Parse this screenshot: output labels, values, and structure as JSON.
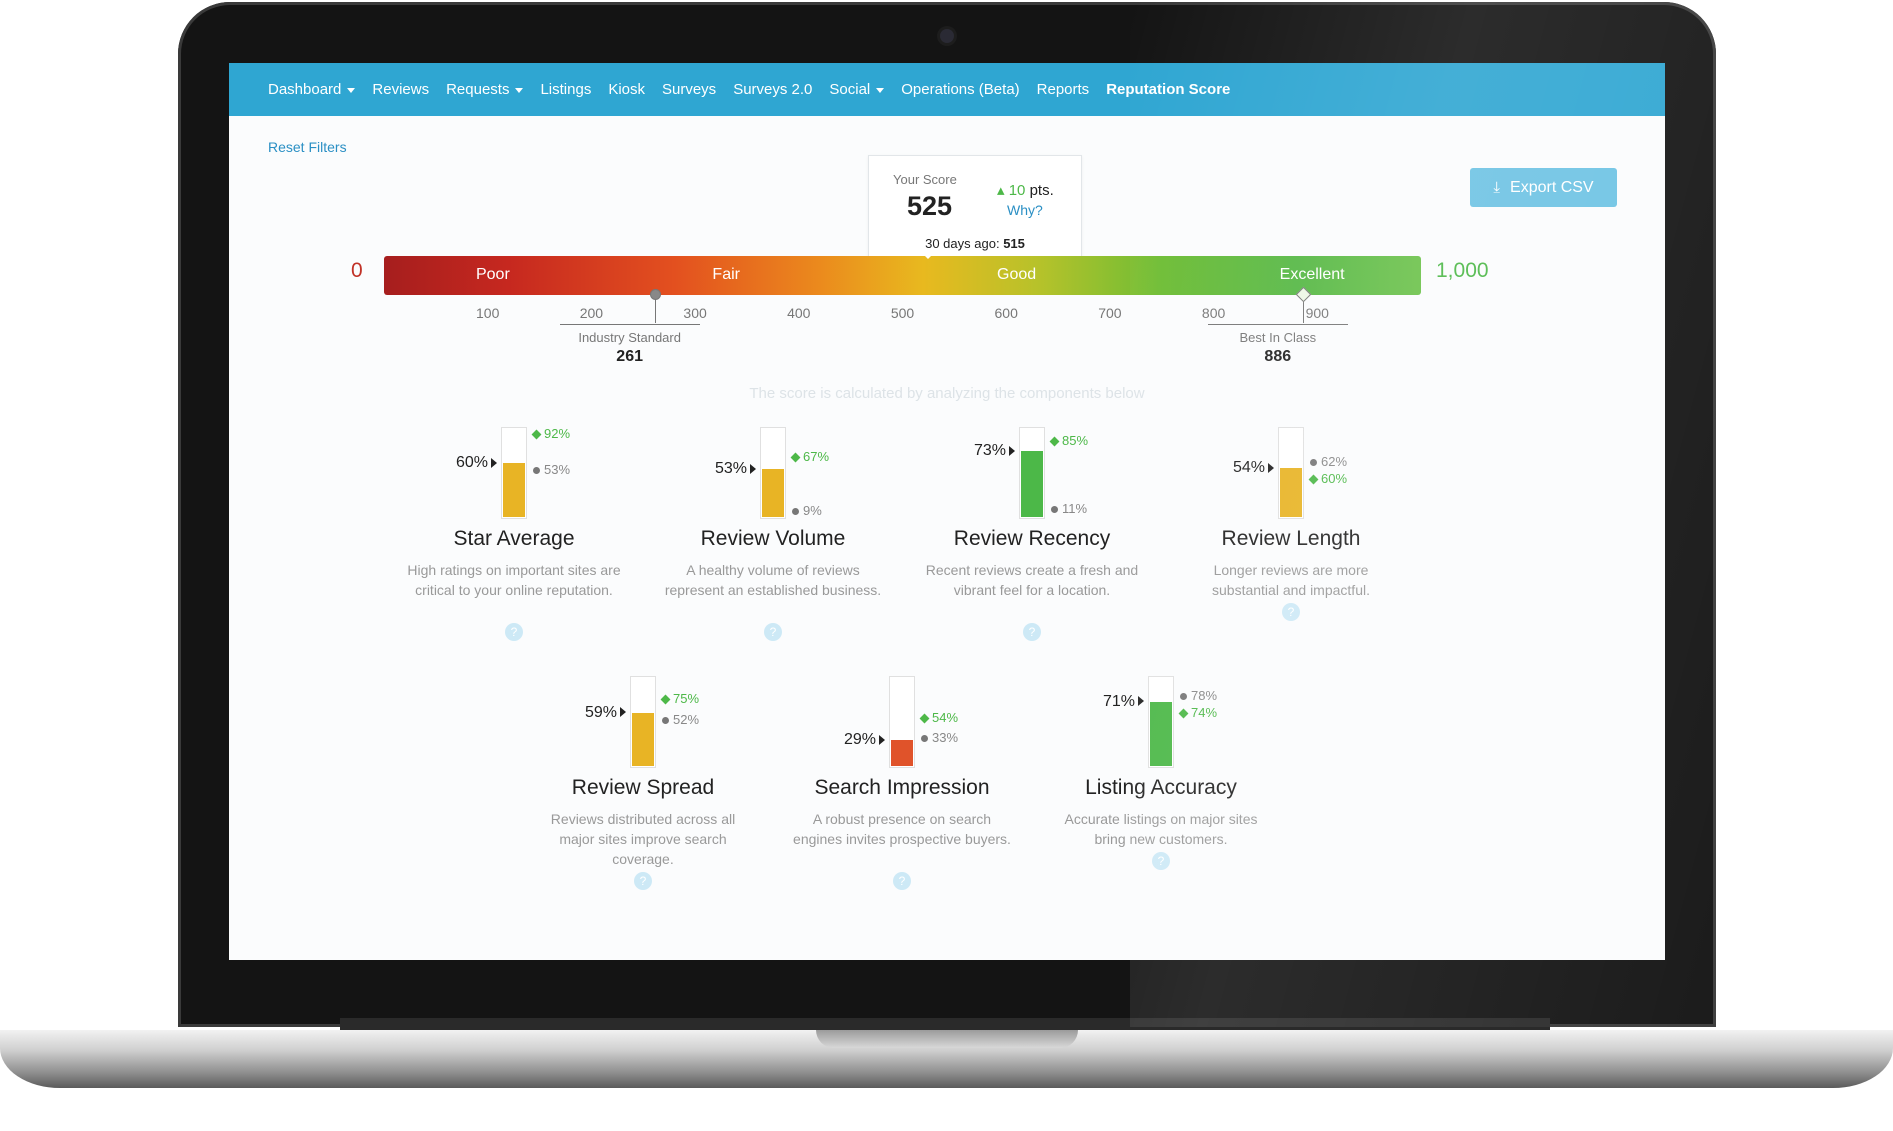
{
  "nav": {
    "items": [
      {
        "label": "Dashboard",
        "dropdown": true
      },
      {
        "label": "Reviews",
        "dropdown": false
      },
      {
        "label": "Requests",
        "dropdown": true
      },
      {
        "label": "Listings",
        "dropdown": false
      },
      {
        "label": "Kiosk",
        "dropdown": false
      },
      {
        "label": "Surveys",
        "dropdown": false
      },
      {
        "label": "Surveys 2.0",
        "dropdown": false
      },
      {
        "label": "Social",
        "dropdown": true
      },
      {
        "label": "Operations (Beta)",
        "dropdown": false
      },
      {
        "label": "Reports",
        "dropdown": false
      },
      {
        "label": "Reputation Score",
        "dropdown": false,
        "active": true
      }
    ]
  },
  "filters": {
    "reset_label": "Reset Filters"
  },
  "export": {
    "label": "Export CSV",
    "icon": "download-icon"
  },
  "score": {
    "label": "Your Score",
    "value": "525",
    "delta": "10",
    "delta_unit": "pts.",
    "why_label": "Why?",
    "ago_label": "30 days ago:",
    "ago_value": "515"
  },
  "gauge": {
    "min_label": "0",
    "max_label": "1,000",
    "bands": [
      "Poor",
      "Fair",
      "Good",
      "Excellent"
    ],
    "ticks": [
      "100",
      "200",
      "300",
      "400",
      "500",
      "600",
      "700",
      "800",
      "900"
    ],
    "industry": {
      "label": "Industry Standard",
      "value": "261"
    },
    "best": {
      "label": "Best In Class",
      "value": "886"
    },
    "caption": "The score is calculated by analyzing the components below"
  },
  "components": [
    {
      "title": "Star Average",
      "value": "60%",
      "fill": 0.6,
      "best": "92%",
      "industry": "53%",
      "color": "#e8b425",
      "desc": "High ratings on important sites are critical to your online reputation."
    },
    {
      "title": "Review Volume",
      "value": "53%",
      "fill": 0.53,
      "best": "67%",
      "industry": "9%",
      "color": "#e8b425",
      "desc": "A healthy volume of reviews represent an established business."
    },
    {
      "title": "Review Recency",
      "value": "73%",
      "fill": 0.73,
      "best": "85%",
      "industry": "11%",
      "color": "#4cb848",
      "desc": "Recent reviews create a fresh and vibrant feel for a location."
    },
    {
      "title": "Review Length",
      "value": "54%",
      "fill": 0.54,
      "best": "60%",
      "industry": "62%",
      "color": "#e8b425",
      "desc": "Longer reviews are more substantial and impactful."
    },
    {
      "title": "Review Spread",
      "value": "59%",
      "fill": 0.59,
      "best": "75%",
      "industry": "52%",
      "color": "#e8b425",
      "desc": "Reviews distributed across all major sites improve search coverage."
    },
    {
      "title": "Search Impression",
      "value": "29%",
      "fill": 0.29,
      "best": "54%",
      "industry": "33%",
      "color": "#e0532a",
      "desc": "A robust presence on search engines invites prospective buyers."
    },
    {
      "title": "Listing Accuracy",
      "value": "71%",
      "fill": 0.71,
      "best": "74%",
      "industry": "78%",
      "color": "#4cb848",
      "desc": "Accurate listings on major sites bring new customers."
    }
  ],
  "help_glyph": "?"
}
